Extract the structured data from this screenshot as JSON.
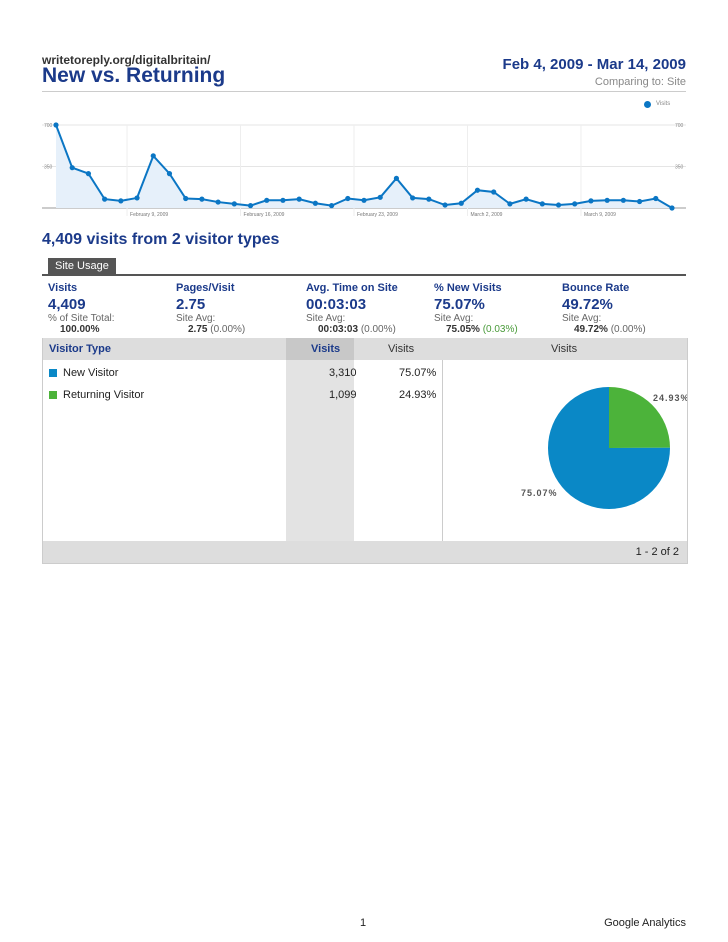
{
  "header": {
    "url": "writetoreply.org/digitalbritain/",
    "title": "New vs. Returning",
    "date_range": "Feb 4, 2009 - Mar 14, 2009",
    "comparing": "Comparing to: Site"
  },
  "chart_data": {
    "type": "area",
    "legend": "Visits",
    "y_ticks_left": [
      "700",
      "350"
    ],
    "y_ticks_right": [
      "700",
      "350"
    ],
    "ylim": [
      0,
      700
    ],
    "x_labels": [
      "February 9, 2009",
      "February 16, 2009",
      "February 23, 2009",
      "March 2, 2009",
      "March 9, 2009"
    ],
    "series": [
      {
        "name": "Visits",
        "values": [
          700,
          340,
          290,
          75,
          60,
          85,
          440,
          290,
          80,
          75,
          50,
          35,
          20,
          65,
          65,
          75,
          40,
          20,
          80,
          65,
          90,
          250,
          85,
          75,
          25,
          40,
          150,
          135,
          35,
          75,
          35,
          25,
          35,
          60,
          65,
          65,
          55,
          80,
          0
        ]
      }
    ],
    "colors": {
      "line": "#0b76c4",
      "fill": "#e6f0fa"
    }
  },
  "summary": {
    "headline": "4,409 visits from 2 visitor types",
    "tab": "Site Usage",
    "metrics": [
      {
        "label": "Visits",
        "value": "4,409",
        "sub": "% of Site Total:",
        "sub2": "100.00%",
        "pct": ""
      },
      {
        "label": "Pages/Visit",
        "value": "2.75",
        "sub": "Site Avg:",
        "sub2": "2.75",
        "pct": "(0.00%)"
      },
      {
        "label": "Avg. Time on Site",
        "value": "00:03:03",
        "sub": "Site Avg:",
        "sub2": "00:03:03",
        "pct": "(0.00%)"
      },
      {
        "label": "% New Visits",
        "value": "75.07%",
        "sub": "Site Avg:",
        "sub2": "75.05%",
        "pct": "(0.03%)"
      },
      {
        "label": "Bounce Rate",
        "value": "49.72%",
        "sub": "Site Avg:",
        "sub2": "49.72%",
        "pct": "(0.00%)"
      }
    ]
  },
  "table": {
    "headers": {
      "type": "Visitor Type",
      "visits": "Visits",
      "visits_pct": "Visits",
      "chart": "Visits"
    },
    "rows": [
      {
        "label": "New Visitor",
        "visits": "3,310",
        "pct": "75.07%",
        "color": "#0a88c6"
      },
      {
        "label": "Returning Visitor",
        "visits": "1,099",
        "pct": "24.93%",
        "color": "#4cb33a"
      }
    ],
    "pie": {
      "values": [
        75.07,
        24.93
      ],
      "labels": [
        "75.07%",
        "24.93%"
      ]
    },
    "pager": "1 - 2 of 2"
  },
  "footer": {
    "page": "1",
    "brand": "Google Analytics"
  }
}
